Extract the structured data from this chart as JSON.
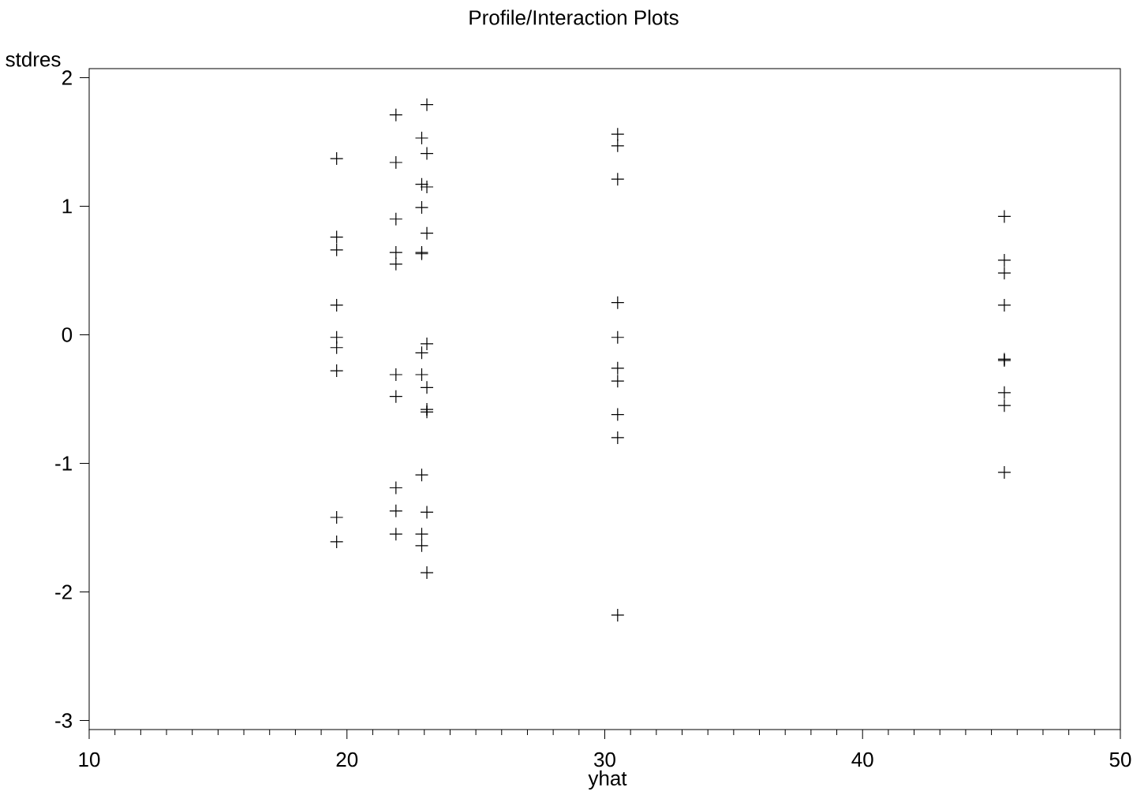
{
  "chart_data": {
    "type": "scatter",
    "title": "Profile/Interaction Plots",
    "xlabel": "yhat",
    "ylabel": "stdres",
    "x": [
      19.6,
      19.6,
      19.6,
      19.6,
      19.6,
      19.6,
      19.6,
      19.6,
      19.6,
      21.9,
      21.9,
      21.9,
      21.9,
      21.9,
      21.9,
      21.9,
      21.9,
      21.9,
      21.9,
      22.9,
      22.9,
      22.9,
      22.9,
      22.9,
      22.9,
      22.9,
      22.9,
      22.9,
      22.9,
      23.1,
      23.1,
      23.1,
      23.1,
      23.1,
      23.1,
      23.1,
      23.1,
      23.1,
      23.1,
      30.5,
      30.5,
      30.5,
      30.5,
      30.5,
      30.5,
      30.5,
      30.5,
      30.5,
      30.5,
      45.5,
      45.5,
      45.5,
      45.5,
      45.5,
      45.5,
      45.5,
      45.5,
      45.5
    ],
    "values": [
      1.37,
      0.76,
      0.66,
      0.23,
      -0.02,
      -0.1,
      -0.28,
      -1.42,
      -1.61,
      1.71,
      1.34,
      0.9,
      0.64,
      0.55,
      -0.31,
      -0.48,
      -1.19,
      -1.37,
      -1.55,
      1.53,
      1.17,
      0.99,
      0.64,
      0.63,
      -0.14,
      -0.31,
      -1.09,
      -1.55,
      -1.64,
      1.79,
      1.41,
      1.15,
      0.79,
      -0.07,
      -0.41,
      -0.58,
      -0.6,
      -1.38,
      -1.85,
      1.56,
      1.47,
      1.21,
      0.25,
      -0.02,
      -0.26,
      -0.36,
      -0.62,
      -0.8,
      -2.18,
      0.92,
      0.58,
      0.48,
      0.23,
      -0.19,
      -0.2,
      -0.45,
      -0.55,
      -1.07
    ],
    "color": "#000000",
    "marker": "cross",
    "xlim": [
      10,
      50
    ],
    "ylim": [
      -3.07,
      2.07
    ],
    "xticks": [
      10,
      20,
      30,
      40,
      50
    ],
    "yticks": [
      -3,
      -2,
      -1,
      0,
      1,
      2
    ]
  }
}
